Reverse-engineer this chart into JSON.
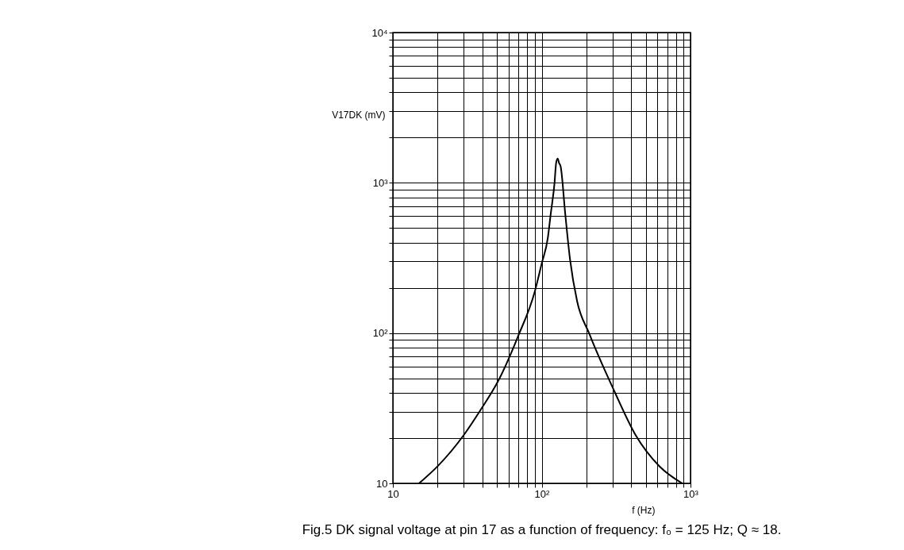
{
  "chart_data": {
    "type": "line",
    "xlabel": "f (Hz)",
    "ylabel": "V17DK (mV)",
    "annotations": [
      "Fig.5 DK signal voltage at pin 17 as a function of frequency: f₀ = 125 Hz; Q ≈ 18."
    ],
    "log": "xy",
    "grid": true,
    "legend": false,
    "marker": "none",
    "line_style": "solid",
    "xlim": [
      10,
      1000
    ],
    "ylim": [
      10,
      10000
    ],
    "xticks": [
      {
        "value": 10,
        "label": "10"
      },
      {
        "value": 20,
        "label": null
      },
      {
        "value": 30,
        "label": null
      },
      {
        "value": 40,
        "label": null
      },
      {
        "value": 50,
        "label": null
      },
      {
        "value": 60,
        "label": null
      },
      {
        "value": 70,
        "label": null
      },
      {
        "value": 80,
        "label": null
      },
      {
        "value": 90,
        "label": null
      },
      {
        "value": 100,
        "label": "10²"
      },
      {
        "value": 200,
        "label": null
      },
      {
        "value": 300,
        "label": null
      },
      {
        "value": 400,
        "label": null
      },
      {
        "value": 500,
        "label": null
      },
      {
        "value": 600,
        "label": null
      },
      {
        "value": 700,
        "label": null
      },
      {
        "value": 800,
        "label": null
      },
      {
        "value": 900,
        "label": null
      },
      {
        "value": 1000,
        "label": "10³"
      }
    ],
    "yticks": [
      {
        "value": 10,
        "label": "10"
      },
      {
        "value": 20,
        "label": null
      },
      {
        "value": 30,
        "label": null
      },
      {
        "value": 40,
        "label": null
      },
      {
        "value": 50,
        "label": null
      },
      {
        "value": 60,
        "label": null
      },
      {
        "value": 70,
        "label": null
      },
      {
        "value": 80,
        "label": null
      },
      {
        "value": 90,
        "label": null
      },
      {
        "value": 100,
        "label": "10²"
      },
      {
        "value": 200,
        "label": null
      },
      {
        "value": 300,
        "label": null
      },
      {
        "value": 400,
        "label": null
      },
      {
        "value": 500,
        "label": null
      },
      {
        "value": 600,
        "label": null
      },
      {
        "value": 700,
        "label": null
      },
      {
        "value": 800,
        "label": null
      },
      {
        "value": 900,
        "label": null
      },
      {
        "value": 1000,
        "label": "10³"
      },
      {
        "value": 2000,
        "label": null
      },
      {
        "value": 3000,
        "label": null
      },
      {
        "value": 4000,
        "label": null
      },
      {
        "value": 5000,
        "label": null
      },
      {
        "value": 6000,
        "label": null
      },
      {
        "value": 7000,
        "label": null
      },
      {
        "value": 8000,
        "label": null
      },
      {
        "value": 9000,
        "label": null
      },
      {
        "value": 10000,
        "label": "10⁴"
      }
    ],
    "series": [
      {
        "color": "#000000",
        "x": [
          15,
          20,
          30,
          39,
          51,
          69,
          90,
          100,
          110,
          115,
          122,
          125,
          128,
          131,
          134,
          144,
          155,
          173,
          208,
          308,
          427,
          618,
          880
        ],
        "values": [
          10,
          13,
          21,
          31,
          48,
          94,
          190,
          290,
          430,
          620,
          1000,
          1350,
          1450,
          1350,
          1290,
          620,
          310,
          163,
          100,
          41,
          21,
          13,
          10
        ]
      }
    ]
  }
}
